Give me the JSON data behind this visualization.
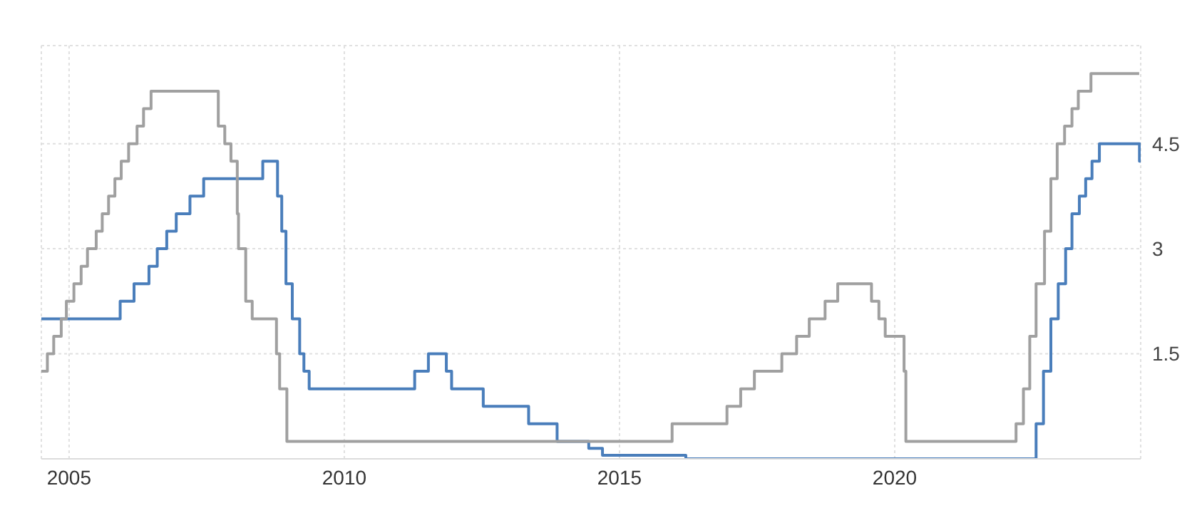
{
  "chart_data": {
    "type": "step",
    "xlim": [
      "2004-07-01",
      "2024-06-20"
    ],
    "xticks": [
      "2005",
      "2010",
      "2015",
      "2020"
    ],
    "ylim": [
      0,
      5.9
    ],
    "yticks": [
      1.5,
      3,
      4.5
    ],
    "grid": true,
    "legend": false,
    "series": [
      {
        "color": "#4a7ebb",
        "x": [
          "2004-07-01",
          "2005-12-06",
          "2006-03-08",
          "2006-06-15",
          "2006-08-09",
          "2006-10-11",
          "2006-12-13",
          "2007-03-14",
          "2007-06-13",
          "2008-07-09",
          "2008-10-15",
          "2008-11-12",
          "2008-12-10",
          "2009-01-21",
          "2009-03-11",
          "2009-04-08",
          "2009-05-13",
          "2011-04-13",
          "2011-07-13",
          "2011-11-09",
          "2011-12-14",
          "2012-07-11",
          "2013-05-08",
          "2013-11-13",
          "2014-06-11",
          "2014-09-10",
          "2016-03-16",
          "2022-07-27",
          "2022-09-14",
          "2022-11-02",
          "2022-12-21",
          "2023-02-08",
          "2023-03-22",
          "2023-05-10",
          "2023-06-21",
          "2023-08-02",
          "2023-09-20",
          "2024-06-12",
          "2024-06-20"
        ],
        "values": [
          2,
          2.25,
          2.5,
          2.75,
          3,
          3.25,
          3.5,
          3.75,
          4,
          4.25,
          3.75,
          3.25,
          2.5,
          2,
          1.5,
          1.25,
          1,
          1.25,
          1.5,
          1.25,
          1,
          0.75,
          0.5,
          0.25,
          0.15,
          0.05,
          0,
          0.5,
          1.25,
          2,
          2.5,
          3,
          3.5,
          3.75,
          4,
          4.25,
          4.5,
          4.25,
          4.25
        ]
      },
      {
        "color": "#a0a0a0",
        "x": [
          "2004-07-01",
          "2004-08-10",
          "2004-09-21",
          "2004-11-10",
          "2004-12-14",
          "2005-02-02",
          "2005-03-22",
          "2005-05-03",
          "2005-06-30",
          "2005-08-09",
          "2005-09-20",
          "2005-11-01",
          "2005-12-13",
          "2006-01-31",
          "2006-03-28",
          "2006-05-10",
          "2006-06-29",
          "2007-09-18",
          "2007-10-31",
          "2007-12-11",
          "2008-01-22",
          "2008-01-30",
          "2008-03-18",
          "2008-04-30",
          "2008-10-08",
          "2008-10-29",
          "2008-12-16",
          "2015-12-16",
          "2016-12-14",
          "2017-03-15",
          "2017-06-14",
          "2017-12-13",
          "2018-03-21",
          "2018-06-13",
          "2018-09-26",
          "2018-12-19",
          "2019-07-31",
          "2019-09-18",
          "2019-10-30",
          "2020-03-03",
          "2020-03-15",
          "2022-03-16",
          "2022-05-04",
          "2022-06-15",
          "2022-07-27",
          "2022-09-21",
          "2022-11-02",
          "2022-12-14",
          "2023-02-01",
          "2023-03-22",
          "2023-05-03",
          "2023-07-26",
          "2024-06-10"
        ],
        "values": [
          1.25,
          1.5,
          1.75,
          2,
          2.25,
          2.5,
          2.75,
          3,
          3.25,
          3.5,
          3.75,
          4,
          4.25,
          4.5,
          4.75,
          5,
          5.25,
          4.75,
          4.5,
          4.25,
          3.5,
          3,
          2.25,
          2,
          1.5,
          1,
          0.25,
          0.5,
          0.75,
          1,
          1.25,
          1.5,
          1.75,
          2,
          2.25,
          2.5,
          2.25,
          2,
          1.75,
          1.25,
          0.25,
          0.5,
          1,
          1.75,
          2.5,
          3.25,
          4,
          4.5,
          4.75,
          5,
          5.25,
          5.5,
          5.5
        ]
      }
    ]
  }
}
